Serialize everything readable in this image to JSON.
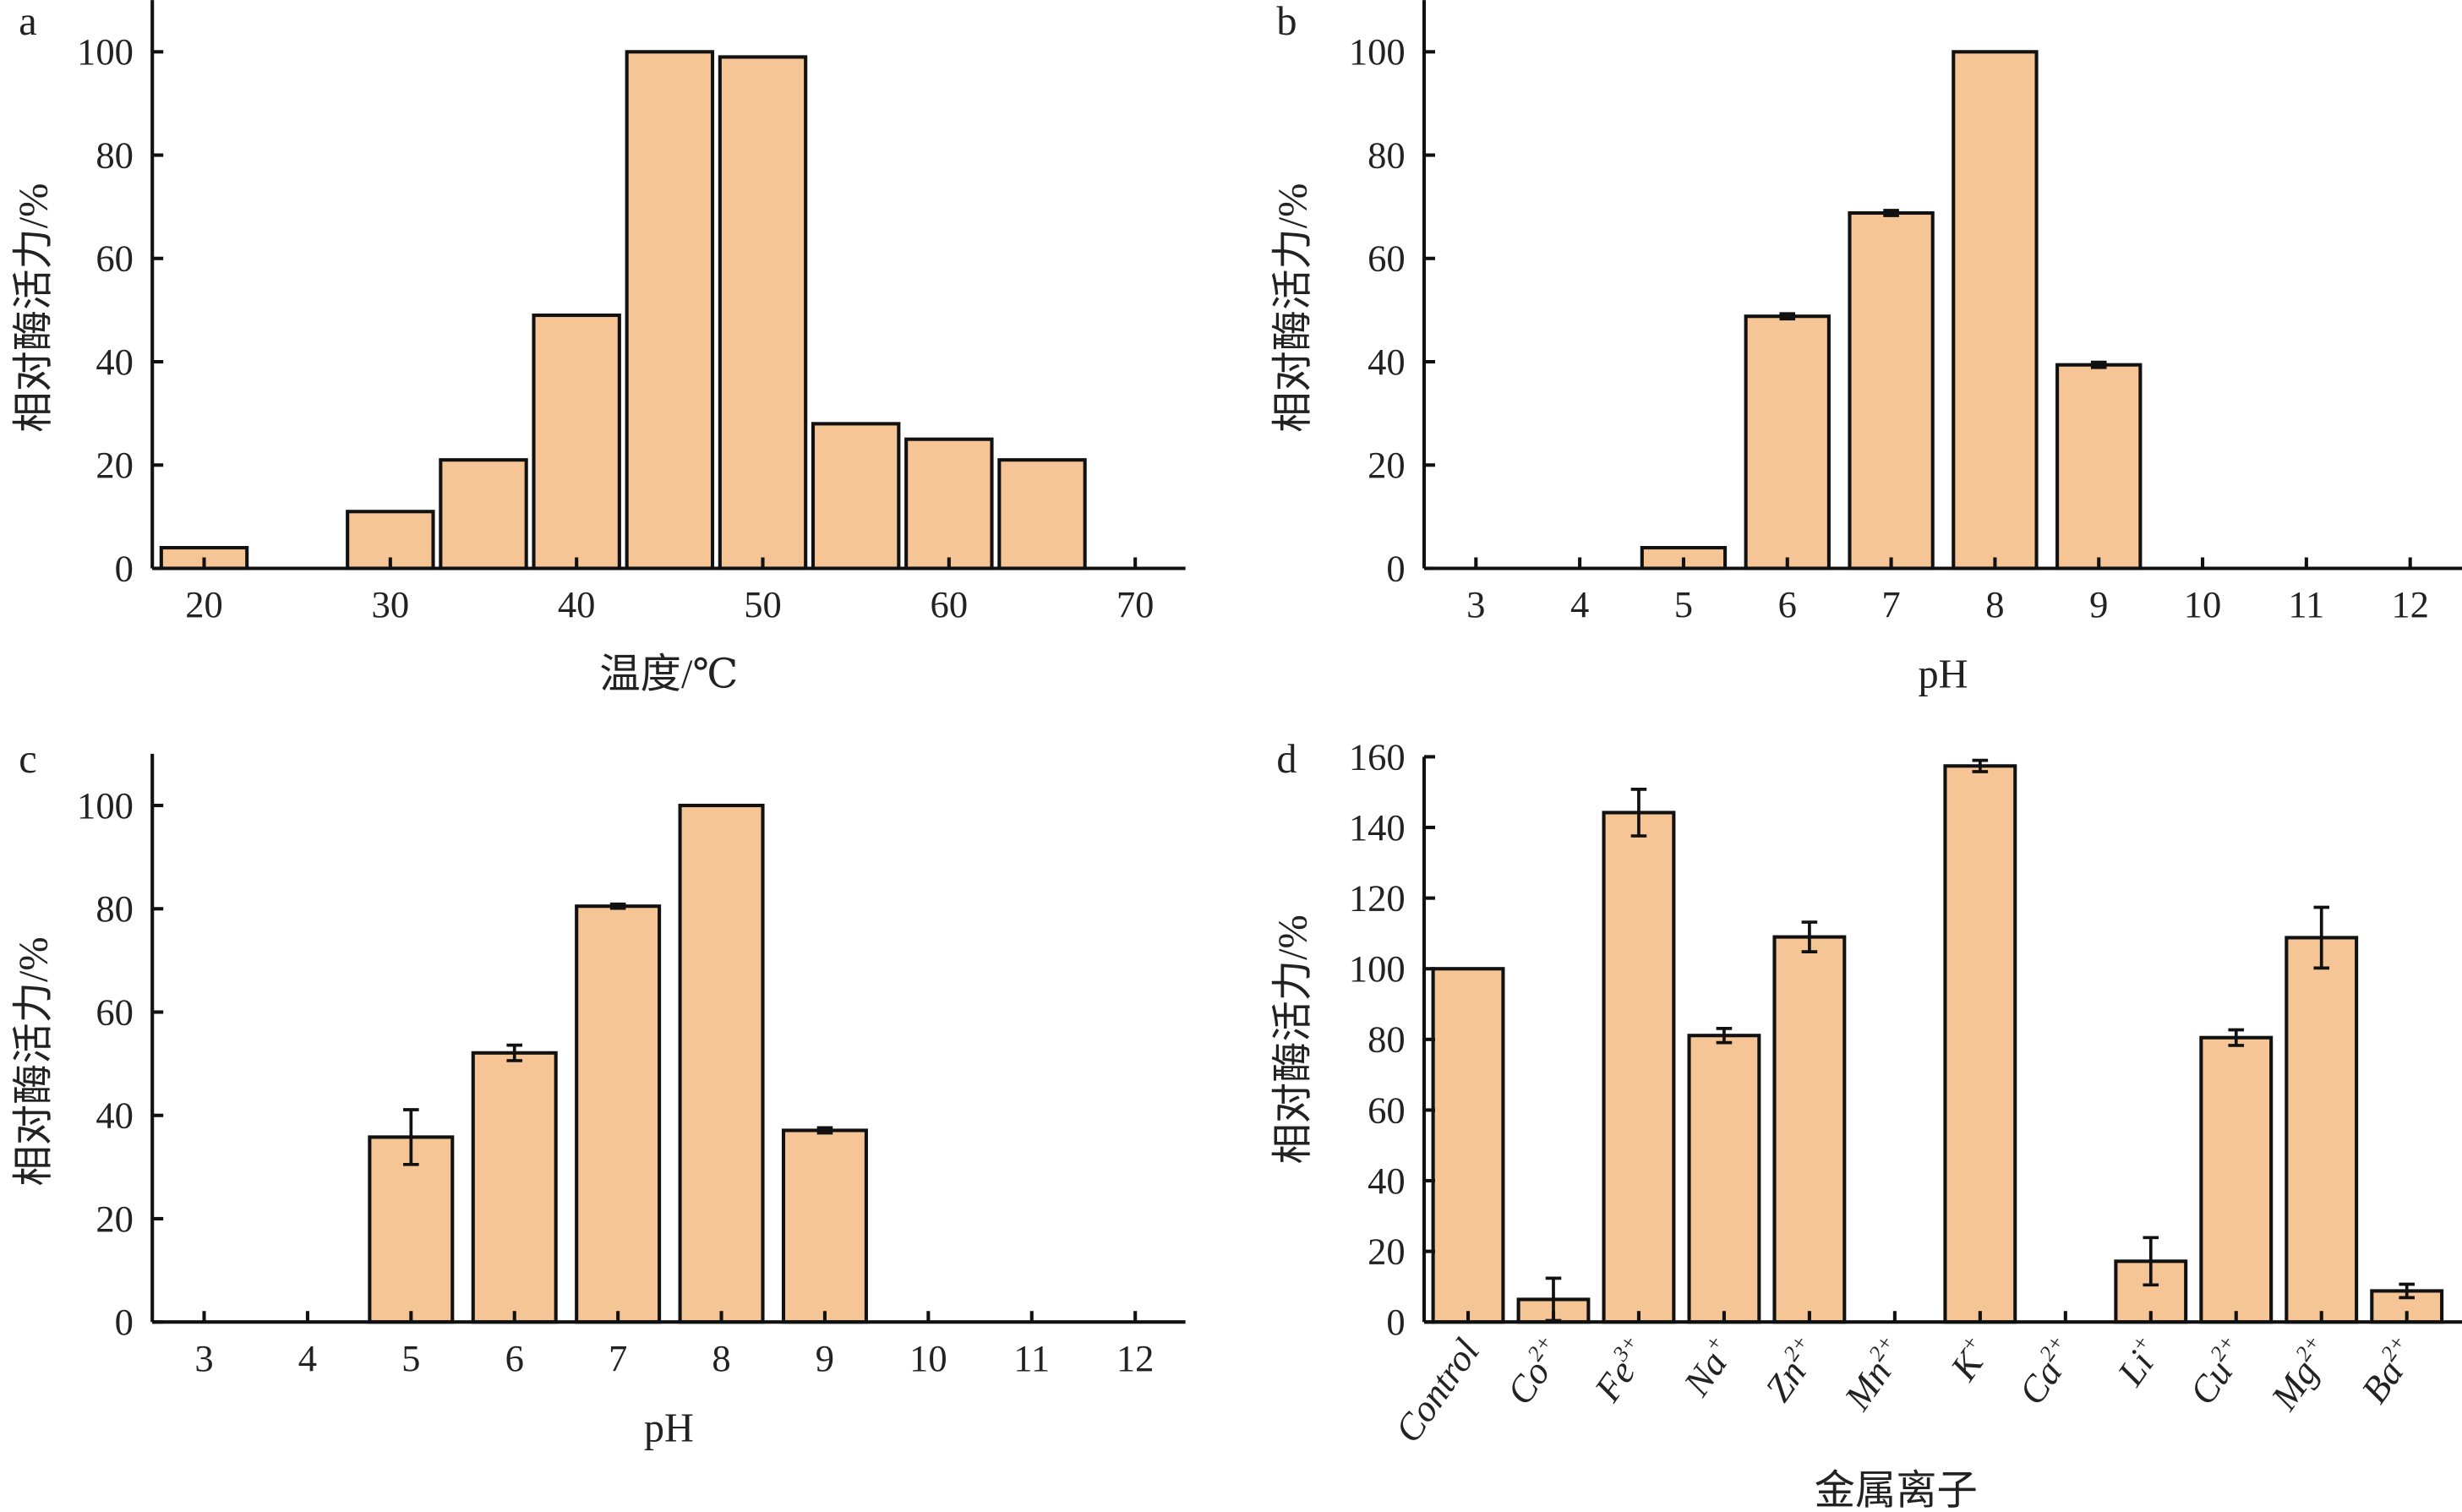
{
  "figure": {
    "background": "#ffffff",
    "bar_color": "#F5C596",
    "edge_color": "#111111"
  },
  "chart_data": [
    {
      "id": "a",
      "panel_label": "a",
      "type": "bar",
      "title": "",
      "xlabel": "温度/℃",
      "ylabel": "相对酶活力/%",
      "x_numeric": true,
      "x": [
        20,
        30,
        35,
        40,
        45,
        50,
        55,
        60,
        65
      ],
      "values": [
        4,
        11,
        21,
        49,
        100,
        99,
        28,
        25,
        21
      ],
      "errors": [
        0,
        0,
        0,
        0,
        0,
        0,
        0,
        0,
        0
      ],
      "xlim": [
        17.2,
        72.6
      ],
      "xticks": [
        20,
        30,
        40,
        50,
        60,
        70
      ],
      "bar_width_units": 4.6,
      "ylim": [
        0,
        110
      ],
      "yticks": [
        0,
        20,
        40,
        60,
        80,
        100
      ],
      "grid": false,
      "legend": "none"
    },
    {
      "id": "b",
      "panel_label": "b",
      "type": "bar",
      "title": "",
      "xlabel": "pH",
      "ylabel": "相对酶活力/%",
      "x_numeric": true,
      "x": [
        3,
        4,
        5,
        6,
        7,
        8,
        9,
        10,
        11,
        12
      ],
      "values": [
        0,
        0,
        4,
        48.8,
        68.8,
        100,
        39.4,
        0,
        0,
        0
      ],
      "errors": [
        0,
        0,
        0,
        0.5,
        0.5,
        0,
        0.5,
        0,
        0,
        0
      ],
      "xlim": [
        2.5,
        12.5
      ],
      "xticks": [
        3,
        4,
        5,
        6,
        7,
        8,
        9,
        10,
        11,
        12
      ],
      "bar_width_units": 0.8,
      "ylim": [
        0,
        110
      ],
      "yticks": [
        0,
        20,
        40,
        60,
        80,
        100
      ],
      "grid": false,
      "legend": "none"
    },
    {
      "id": "c",
      "panel_label": "c",
      "type": "bar",
      "title": "",
      "xlabel": "pH",
      "ylabel": "相对酶活力/%",
      "x_numeric": true,
      "x": [
        3,
        4,
        5,
        6,
        7,
        8,
        9,
        10,
        11,
        12
      ],
      "values": [
        0,
        0,
        35.8,
        52.1,
        80.5,
        100,
        37.1,
        0,
        0,
        0
      ],
      "errors": [
        0,
        0,
        5.3,
        1.5,
        0.4,
        0,
        0.5,
        0,
        0,
        0
      ],
      "xlim": [
        2.5,
        12.5
      ],
      "xticks": [
        3,
        4,
        5,
        6,
        7,
        8,
        9,
        10,
        11,
        12
      ],
      "bar_width_units": 0.8,
      "ylim": [
        0,
        110
      ],
      "yticks": [
        0,
        20,
        40,
        60,
        80,
        100
      ],
      "grid": false,
      "legend": "none"
    },
    {
      "id": "d",
      "panel_label": "d",
      "type": "bar",
      "title": "",
      "xlabel": "金属离子",
      "ylabel": "相对酶活力/%",
      "x_numeric": false,
      "categories": [
        {
          "base": "Control",
          "sup": ""
        },
        {
          "base": "Co",
          "sup": "2+"
        },
        {
          "base": "Fe",
          "sup": "3+"
        },
        {
          "base": "Na",
          "sup": "+"
        },
        {
          "base": "Zn",
          "sup": "2+"
        },
        {
          "base": "Mn",
          "sup": "2+"
        },
        {
          "base": "K",
          "sup": "+"
        },
        {
          "base": "Ca",
          "sup": "2+"
        },
        {
          "base": "Li",
          "sup": "+"
        },
        {
          "base": "Cu",
          "sup": "2+"
        },
        {
          "base": "Mg",
          "sup": "2+"
        },
        {
          "base": "Ba",
          "sup": "2+"
        }
      ],
      "values": [
        100,
        6.4,
        144.2,
        81.1,
        109,
        0,
        157.4,
        0,
        17.2,
        80.5,
        108.8,
        8.8
      ],
      "errors": [
        0,
        6,
        6.6,
        2,
        4.2,
        0,
        1.6,
        0,
        6.7,
        2.2,
        8.6,
        1.9
      ],
      "bar_width_units": 0.82,
      "ylim": [
        0,
        160
      ],
      "yticks": [
        0,
        20,
        40,
        60,
        80,
        100,
        120,
        140,
        160
      ],
      "grid": false,
      "legend": "none"
    }
  ]
}
